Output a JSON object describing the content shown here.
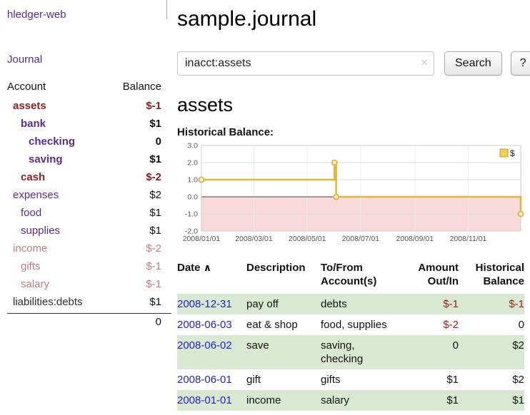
{
  "sidebar": {
    "app_title": "hledger-web",
    "journal_link": "Journal",
    "accounts_header": "Account",
    "balance_header": "Balance",
    "accounts": [
      {
        "name": "assets",
        "balance": "$-1",
        "indent": 0,
        "name_style": "red",
        "balance_style": "red",
        "bold": true
      },
      {
        "name": "bank",
        "balance": "$1",
        "indent": 1,
        "name_style": "purple",
        "balance_style": "plain",
        "bold": true
      },
      {
        "name": "checking",
        "balance": "0",
        "indent": 2,
        "name_style": "purple",
        "balance_style": "plain",
        "bold": true
      },
      {
        "name": "saving",
        "balance": "$1",
        "indent": 2,
        "name_style": "purple",
        "balance_style": "plain",
        "bold": true
      },
      {
        "name": "cash",
        "balance": "$-2",
        "indent": 1,
        "name_style": "red",
        "balance_style": "red",
        "bold": true
      },
      {
        "name": "expenses",
        "balance": "$2",
        "indent": 0,
        "name_style": "purple",
        "balance_style": "plain",
        "bold": false
      },
      {
        "name": "food",
        "balance": "$1",
        "indent": 1,
        "name_style": "purple",
        "balance_style": "plain",
        "bold": false
      },
      {
        "name": "supplies",
        "balance": "$1",
        "indent": 1,
        "name_style": "purple",
        "balance_style": "plain",
        "bold": false
      },
      {
        "name": "income",
        "balance": "$-2",
        "indent": 0,
        "name_style": "muted",
        "balance_style": "muted",
        "bold": false
      },
      {
        "name": "gifts",
        "balance": "$-1",
        "indent": 1,
        "name_style": "muted",
        "balance_style": "muted",
        "bold": false
      },
      {
        "name": "salary",
        "balance": "$-1",
        "indent": 1,
        "name_style": "muted",
        "balance_style": "muted",
        "bold": false
      },
      {
        "name": "liabilities:debts",
        "balance": "$1",
        "indent": 0,
        "name_style": "dark",
        "balance_style": "plain",
        "bold": false
      }
    ],
    "total": "0"
  },
  "main": {
    "title": "sample.journal",
    "search": {
      "value": "inacct:assets",
      "clear_icon": "×",
      "search_button": "Search",
      "help_button": "?"
    },
    "account_heading": "assets",
    "chart_label": "Historical Balance:"
  },
  "chart_data": {
    "type": "line",
    "step": "after",
    "title": "Historical Balance",
    "series": [
      {
        "name": "$",
        "points": [
          [
            "2008-01-01",
            1
          ],
          [
            "2008-06-01",
            2
          ],
          [
            "2008-06-03",
            0
          ],
          [
            "2008-12-31",
            -1
          ]
        ]
      }
    ],
    "x_range": [
      "2008-01-01",
      "2008-12-31"
    ],
    "x_ticks": [
      {
        "date": "2008-01-01",
        "label": "2008/01/01"
      },
      {
        "date": "2008-03-01",
        "label": "2008/03/01"
      },
      {
        "date": "2008-05-01",
        "label": "2008/05/01"
      },
      {
        "date": "2008-07-01",
        "label": "2008/07/01"
      },
      {
        "date": "2008-09-01",
        "label": "2008/09/01"
      },
      {
        "date": "2008-11-01",
        "label": "2008/11/01"
      }
    ],
    "y_ticks": [
      {
        "v": 3,
        "label": "3.0"
      },
      {
        "v": 2,
        "label": "2.0"
      },
      {
        "v": 1,
        "label": "1.0"
      },
      {
        "v": 0,
        "label": "0.0"
      },
      {
        "v": -1,
        "label": "-1.0"
      },
      {
        "v": -2,
        "label": "-2.0"
      }
    ],
    "ylim": [
      -2,
      3
    ],
    "grid": true,
    "legend": {
      "position": "top-right",
      "label": "$"
    },
    "colors": {
      "line": "#dfb63f",
      "marker_fill": "#fdf6e0",
      "negative_region": "#f9dada",
      "grid": "#dddddd",
      "zero_line": "#444444",
      "legend_swatch": "#eccf55",
      "legend_swatch_border": "#c9a227"
    }
  },
  "register": {
    "headers": {
      "date": "Date",
      "sort_indicator": "∧",
      "description": "Description",
      "account": "To/From Account(s)",
      "amount": "Amount Out/In",
      "balance": "Historical Balance"
    },
    "rows": [
      {
        "date": "2008-12-31",
        "description": "pay off",
        "account": "debts",
        "amount": "$-1",
        "balance": "$-1",
        "amount_style": "neg",
        "balance_style": "neg",
        "shaded": true
      },
      {
        "date": "2008-06-03",
        "description": "eat & shop",
        "account": "food, supplies",
        "amount": "$-2",
        "balance": "0",
        "amount_style": "neg",
        "balance_style": "plain",
        "shaded": false
      },
      {
        "date": "2008-06-02",
        "description": "save",
        "account": "saving, checking",
        "amount": "0",
        "balance": "$2",
        "amount_style": "plain",
        "balance_style": "plain",
        "shaded": true
      },
      {
        "date": "2008-06-01",
        "description": "gift",
        "account": "gifts",
        "amount": "$1",
        "balance": "$2",
        "amount_style": "plain",
        "balance_style": "plain",
        "shaded": false
      },
      {
        "date": "2008-01-01",
        "description": "income",
        "account": "salary",
        "amount": "$1",
        "balance": "$1",
        "amount_style": "plain",
        "balance_style": "plain",
        "shaded": true
      }
    ]
  },
  "colors": {
    "accent_purple": "#5b2d90",
    "negative_red": "#8e1f1f",
    "muted_negative": "#c07f7f",
    "link_blue": "#2222cc",
    "row_green": "#d9e8d0",
    "chart_gold": "#dfb63f",
    "chart_negative_pink": "#f9dada"
  }
}
